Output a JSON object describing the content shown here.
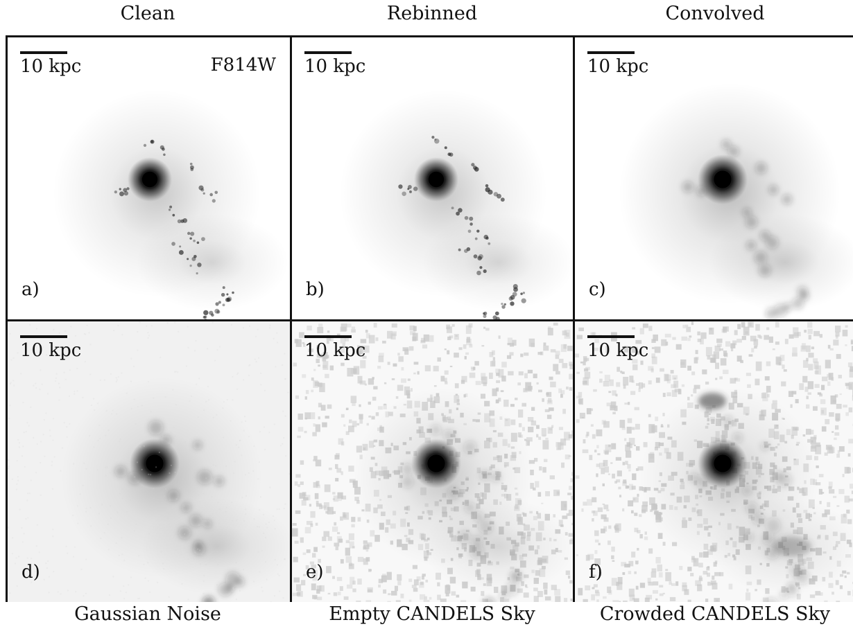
{
  "column_titles": [
    "Clean",
    "Rebinned",
    "Convolved"
  ],
  "row_captions": [
    "Gaussian Noise",
    "Empty CANDELS Sky",
    "Crowded CANDELS Sky"
  ],
  "scale_label": "10 kpc",
  "filter_label": "F814W",
  "panels": [
    {
      "letter": "a)",
      "style": "clean"
    },
    {
      "letter": "b)",
      "style": "rebinned"
    },
    {
      "letter": "c)",
      "style": "convolved"
    },
    {
      "letter": "d)",
      "style": "gaussian"
    },
    {
      "letter": "e)",
      "style": "empty"
    },
    {
      "letter": "f)",
      "style": "crowded"
    }
  ]
}
